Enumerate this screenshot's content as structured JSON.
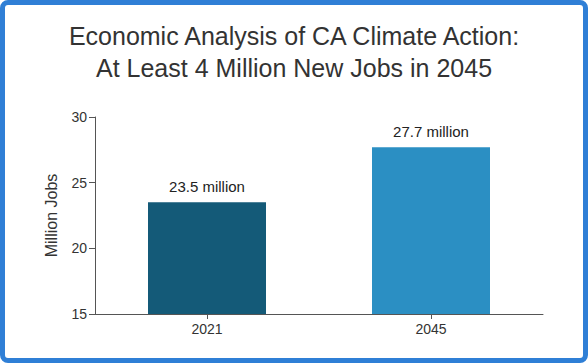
{
  "chart_data": {
    "type": "bar",
    "title": "Economic Analysis of CA Climate Action:\nAt Least 4 Million New Jobs in 2045",
    "y_label": "Million Jobs",
    "categories": [
      "2021",
      "2045"
    ],
    "values": [
      23.5,
      27.7
    ],
    "value_labels": [
      "23.5 million",
      "27.7 million"
    ],
    "colors": [
      "#145a78",
      "#2b8fc3"
    ],
    "ylim": [
      15,
      30
    ],
    "yticks": [
      15,
      20,
      25,
      30
    ],
    "grid": false,
    "data_labels": true
  }
}
